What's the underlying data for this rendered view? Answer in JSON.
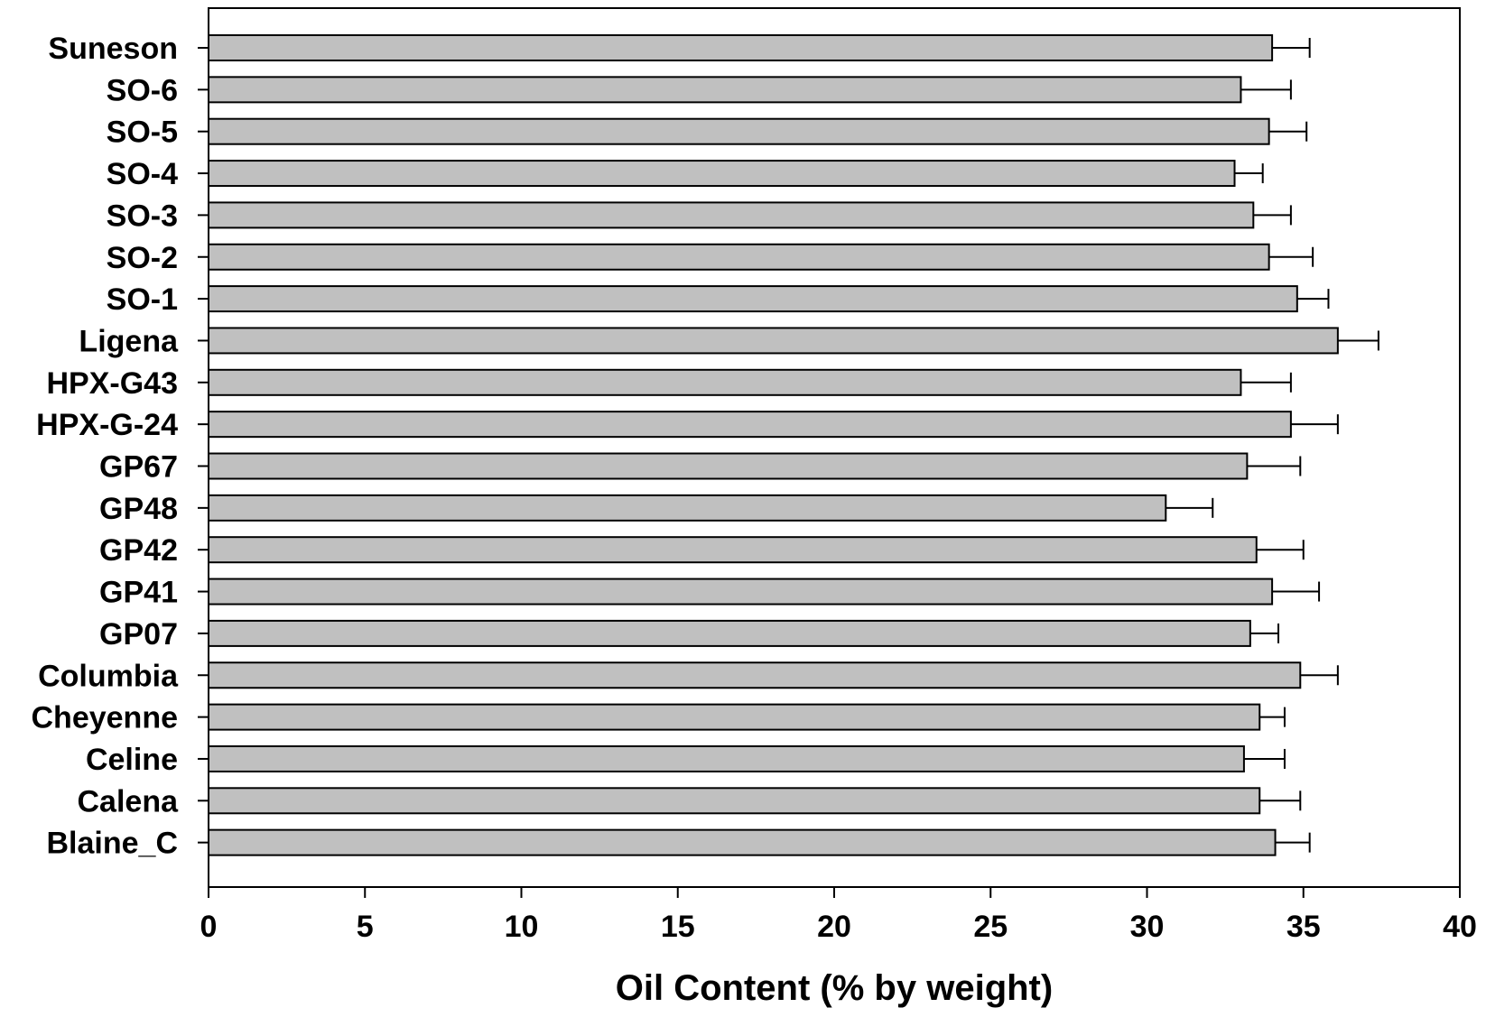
{
  "chart_data": {
    "type": "bar",
    "orientation": "horizontal",
    "categories": [
      "Suneson",
      "SO-6",
      "SO-5",
      "SO-4",
      "SO-3",
      "SO-2",
      "SO-1",
      "Ligena",
      "HPX-G43",
      "HPX-G-24",
      "GP67",
      "GP48",
      "GP42",
      "GP41",
      "GP07",
      "Columbia",
      "Cheyenne",
      "Celine",
      "Calena",
      "Blaine_C"
    ],
    "series": [
      {
        "values": [
          34.0,
          33.0,
          33.9,
          32.8,
          33.4,
          33.9,
          34.8,
          36.1,
          33.0,
          34.6,
          33.2,
          30.6,
          33.5,
          34.0,
          33.3,
          34.9,
          33.6,
          33.1,
          33.6,
          34.1
        ],
        "error": [
          1.2,
          1.6,
          1.2,
          0.9,
          1.2,
          1.4,
          1.0,
          1.3,
          1.6,
          1.5,
          1.7,
          1.5,
          1.5,
          1.5,
          0.9,
          1.2,
          0.8,
          1.3,
          1.3,
          1.1
        ]
      }
    ],
    "xlabel": "Oil Content (% by weight)",
    "ylabel": "",
    "title": "",
    "xlim": [
      0,
      40
    ],
    "xticks": [
      0,
      5,
      10,
      15,
      20,
      25,
      30,
      35,
      40
    ],
    "grid": false,
    "legend": "none",
    "colors": {
      "bar_fill": "#c0c0c0",
      "bar_stroke": "#000000",
      "error_bar": "#000000",
      "frame": "#000000"
    }
  }
}
